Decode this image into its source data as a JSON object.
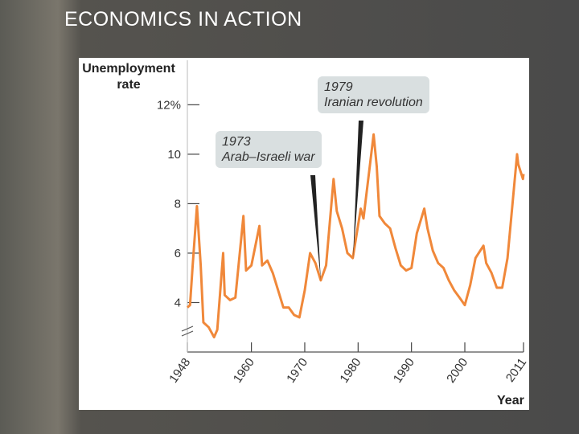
{
  "header": {
    "title": "ECONOMICS IN ACTION"
  },
  "chart_data": {
    "type": "line",
    "ylabel": "Unemployment rate",
    "xlabel": "Year",
    "color": "#f0883a",
    "x": [
      1948,
      1948.5,
      1949,
      1949.8,
      1950.5,
      1951,
      1952,
      1953,
      1953.6,
      1954.7,
      1955,
      1956,
      1957,
      1958.5,
      1959,
      1960,
      1961.5,
      1962,
      1963,
      1964,
      1965,
      1966,
      1967,
      1968,
      1969,
      1970,
      1971,
      1972,
      1973,
      1974,
      1975.4,
      1976,
      1977,
      1978,
      1979,
      1980.5,
      1981,
      1982.9,
      1983.5,
      1984,
      1985,
      1986,
      1987,
      1988,
      1989,
      1990,
      1991,
      1992.4,
      1993,
      1994,
      1995,
      1996,
      1997,
      1998,
      1999,
      2000,
      2001,
      2002,
      2003.5,
      2004,
      2005,
      2006,
      2007,
      2008,
      2009.8,
      2010,
      2010.9,
      2011
    ],
    "values": [
      3.8,
      3.9,
      5.5,
      7.9,
      5.5,
      3.2,
      3.0,
      2.6,
      2.9,
      6.0,
      4.3,
      4.1,
      4.2,
      7.5,
      5.3,
      5.5,
      7.1,
      5.5,
      5.7,
      5.2,
      4.5,
      3.8,
      3.8,
      3.5,
      3.4,
      4.5,
      6.0,
      5.6,
      4.9,
      5.5,
      9.0,
      7.7,
      7.0,
      6.0,
      5.8,
      7.8,
      7.4,
      10.8,
      9.5,
      7.5,
      7.2,
      7.0,
      6.2,
      5.5,
      5.3,
      5.4,
      6.8,
      7.8,
      7.0,
      6.1,
      5.6,
      5.4,
      4.9,
      4.5,
      4.2,
      3.9,
      4.7,
      5.8,
      6.3,
      5.6,
      5.2,
      4.6,
      4.6,
      5.8,
      10.0,
      9.6,
      9.0,
      9.2
    ],
    "xlim": [
      1948,
      2011
    ],
    "ylim": [
      2,
      13.8
    ],
    "xticks": [
      1948,
      1960,
      1970,
      1980,
      1990,
      2000,
      2011
    ],
    "yticks": [
      4,
      6,
      8,
      10,
      {
        "value": 12,
        "label": "12%"
      }
    ],
    "annotations": [
      {
        "year": "1973",
        "text": "Arab–Israeli war"
      },
      {
        "year": "1979",
        "text": "Iranian revolution"
      }
    ]
  }
}
